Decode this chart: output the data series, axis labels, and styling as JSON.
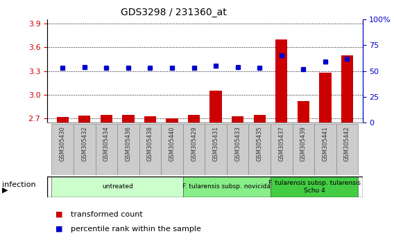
{
  "title": "GDS3298 / 231360_at",
  "samples": [
    "GSM305430",
    "GSM305432",
    "GSM305434",
    "GSM305436",
    "GSM305438",
    "GSM305440",
    "GSM305429",
    "GSM305431",
    "GSM305433",
    "GSM305435",
    "GSM305437",
    "GSM305439",
    "GSM305441",
    "GSM305442"
  ],
  "red_values": [
    2.72,
    2.74,
    2.745,
    2.745,
    2.725,
    2.7,
    2.745,
    3.05,
    2.73,
    2.745,
    3.7,
    2.92,
    3.28,
    3.5
  ],
  "blue_values": [
    53,
    54,
    53,
    53,
    53,
    53,
    53,
    55,
    54,
    53,
    65,
    52,
    59,
    62
  ],
  "ylim_left": [
    2.65,
    3.95
  ],
  "ylim_right": [
    0,
    100
  ],
  "yticks_left": [
    2.7,
    3.0,
    3.3,
    3.6,
    3.9
  ],
  "yticks_right": [
    0,
    25,
    50,
    75,
    100
  ],
  "ytick_labels_right": [
    "0",
    "25",
    "50",
    "75",
    "100%"
  ],
  "groups": [
    {
      "label": "untreated",
      "start": 0,
      "end": 6,
      "color": "#ccffcc"
    },
    {
      "label": "F. tularensis subsp. novicida",
      "start": 6,
      "end": 10,
      "color": "#88ee88"
    },
    {
      "label": "F. tularensis subsp. tularensis\nSchu 4",
      "start": 10,
      "end": 14,
      "color": "#44cc44"
    }
  ],
  "infection_label": "infection",
  "legend_red": "transformed count",
  "legend_blue": "percentile rank within the sample",
  "red_color": "#cc0000",
  "blue_color": "#0000cc",
  "bar_width": 0.55,
  "blue_marker_size": 5,
  "grid_color": "#000000",
  "background_color": "#ffffff",
  "xticklabel_color": "#333333",
  "ytick_left_color": "#cc0000",
  "ytick_right_color": "#0000cc",
  "label_box_color": "#cccccc",
  "label_box_edge": "#888888"
}
